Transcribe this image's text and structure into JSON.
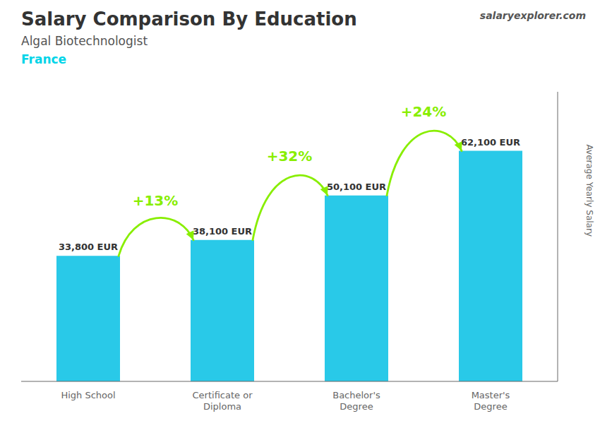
{
  "chart_data": {
    "type": "bar",
    "title": "Salary Comparison By Education",
    "subtitle": "Algal Biotechnologist",
    "y_label": "Average Yearly Salary",
    "categories": [
      "High School",
      "Certificate or\nDiploma",
      "Bachelor's\nDegree",
      "Master's\nDegree"
    ],
    "values": [
      33800,
      38100,
      50100,
      62100
    ],
    "value_labels": [
      "33,800 EUR",
      "38,100 EUR",
      "50,100 EUR",
      "62,100 EUR"
    ],
    "data_labels": true,
    "color": "#29C9E8",
    "ylim": [
      0,
      78000
    ],
    "tick_labels": "x",
    "grid": false,
    "annotations": [
      {
        "text": "+13%",
        "from": "High School",
        "to": "Certificate or\nDiploma",
        "color": "#88EE00"
      },
      {
        "text": "+32%",
        "from": "Certificate or\nDiploma",
        "to": "Bachelor's\nDegree",
        "color": "#88EE00"
      },
      {
        "text": "+24%",
        "from": "Bachelor's\nDegree",
        "to": "Master's\nDegree",
        "color": "#88EE00"
      },
      {
        "text": "France",
        "color": "#00D4E8"
      },
      {
        "text": "salaryexplorer.com"
      }
    ]
  }
}
